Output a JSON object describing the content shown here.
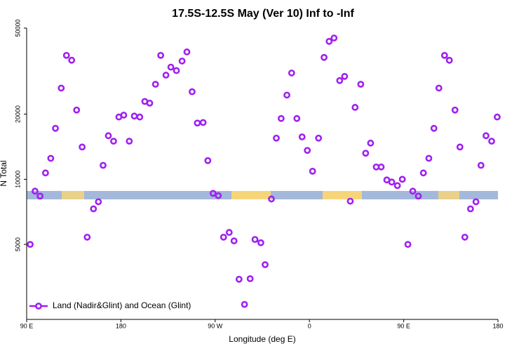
{
  "chart_data": {
    "type": "scatter",
    "title": "17.5S-12.5S May (Ver 10)   Inf to -Inf",
    "xlabel": "Longitude (deg E)",
    "ylabel": "N Total",
    "xlim": [
      90,
      540
    ],
    "xticks": [
      {
        "value": 90,
        "label": "90 E"
      },
      180,
      {
        "value": 270,
        "label": "90 W"
      },
      {
        "value": 360,
        "label": "0"
      },
      {
        "value": 450,
        "label": "90 E"
      },
      {
        "value": 540,
        "label": "180"
      }
    ],
    "ylim": [
      2250,
      50000
    ],
    "ylog": true,
    "yticks": [
      5000,
      10000,
      20000,
      50000
    ],
    "legend": "bottom-left",
    "x": [
      93.4,
      98,
      102.8,
      108,
      113,
      117.5,
      123,
      128,
      133,
      137.7,
      143,
      147.8,
      153.8,
      158.5,
      163,
      168,
      173,
      178,
      182.7,
      188,
      192.8,
      198,
      202.8,
      207.5,
      213,
      218,
      223,
      227.7,
      233,
      238.4,
      243,
      248,
      253,
      258.5,
      263,
      268,
      273,
      278,
      283.4,
      288,
      292.8,
      298,
      303.4,
      308,
      313.6,
      317.7,
      323.7,
      328.4,
      333,
      338.5,
      343,
      348,
      353,
      358,
      363,
      368.7,
      374,
      378.8,
      383.5,
      388.9,
      393.6,
      399,
      403.6,
      409,
      413.7,
      418.4,
      423.8,
      428.5,
      433.9,
      438.6,
      444,
      448.7,
      454,
      458.7,
      464,
      468.8,
      474,
      478.9,
      483.6,
      489,
      493.6,
      499,
      503.7,
      508.4,
      513.8,
      519,
      523.8,
      528.6,
      534,
      539.3
    ],
    "series": [
      {
        "name": "Land (Nadir&Glint) and Ocean (Glint)",
        "color": "#a020f0",
        "values": [
          5000,
          8810,
          8360,
          10700,
          12500,
          17200,
          26400,
          37400,
          35500,
          20900,
          14100,
          5400,
          7300,
          7870,
          11600,
          15900,
          15000,
          19400,
          19800,
          15000,
          19600,
          19400,
          22900,
          22500,
          27500,
          37400,
          30300,
          33000,
          31800,
          35200,
          38800,
          25400,
          18200,
          18300,
          12200,
          8610,
          8400,
          5400,
          5680,
          5190,
          3450,
          2640,
          3470,
          5270,
          5090,
          4030,
          8110,
          15500,
          19100,
          24500,
          31000,
          19100,
          15700,
          13600,
          10900,
          15500,
          36600,
          43400,
          45000,
          28600,
          29900,
          7920,
          21500,
          27500,
          13200,
          14700,
          11400,
          11400,
          9930,
          9710,
          9350,
          10000,
          5000,
          8810,
          8360,
          10700,
          12500,
          17200,
          26400,
          37400,
          35500,
          20900,
          14100,
          5400,
          7300,
          7870,
          11600,
          15900,
          15000,
          19400
        ]
      }
    ]
  }
}
